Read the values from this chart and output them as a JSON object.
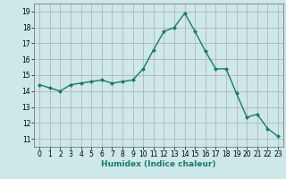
{
  "x": [
    0,
    1,
    2,
    3,
    4,
    5,
    6,
    7,
    8,
    9,
    10,
    11,
    12,
    13,
    14,
    15,
    16,
    17,
    18,
    19,
    20,
    21,
    22,
    23
  ],
  "y": [
    14.4,
    14.2,
    14.0,
    14.4,
    14.5,
    14.6,
    14.7,
    14.5,
    14.6,
    14.7,
    15.4,
    16.6,
    17.75,
    18.0,
    18.9,
    17.75,
    16.5,
    15.4,
    15.4,
    13.85,
    12.35,
    12.55,
    11.65,
    11.15
  ],
  "line_color": "#1a7a6e",
  "marker": "D",
  "marker_size": 2.0,
  "bg_color": "#cce8e8",
  "grid_color": "#b8a8a8",
  "xlabel": "Humidex (Indice chaleur)",
  "ylim": [
    10.5,
    19.5
  ],
  "xlim": [
    -0.5,
    23.5
  ],
  "yticks": [
    11,
    12,
    13,
    14,
    15,
    16,
    17,
    18,
    19
  ],
  "xticks": [
    0,
    1,
    2,
    3,
    4,
    5,
    6,
    7,
    8,
    9,
    10,
    11,
    12,
    13,
    14,
    15,
    16,
    17,
    18,
    19,
    20,
    21,
    22,
    23
  ],
  "tick_fontsize": 5.5,
  "xlabel_fontsize": 6.5,
  "linewidth": 1.0
}
